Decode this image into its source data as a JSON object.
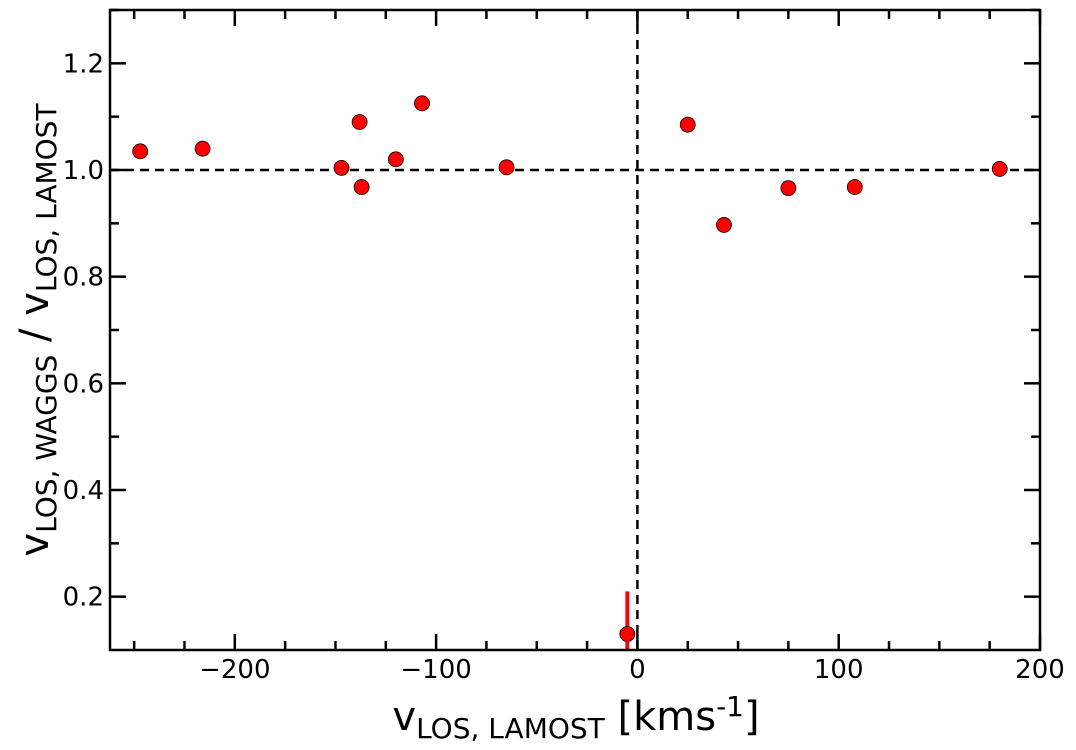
{
  "chart_data": {
    "type": "scatter",
    "xlabel": {
      "main": "v",
      "sub": "LOS, LAMOST",
      "tail": " [kms",
      "sup": "-1",
      "end": "]"
    },
    "ylabel": {
      "main1": "v",
      "sub1": "LOS, WAGGS",
      "mid": " / v",
      "sub2": "LOS, LAMOST"
    },
    "xlim": [
      -262,
      200
    ],
    "ylim": [
      0.1,
      1.3
    ],
    "x_ticks": [
      -200,
      -100,
      0,
      100,
      200
    ],
    "x_tick_labels": [
      "−200",
      "−100",
      "0",
      "100",
      "200"
    ],
    "y_ticks": [
      0.2,
      0.4,
      0.6,
      0.8,
      1.0,
      1.2
    ],
    "y_tick_labels": [
      "0.2",
      "0.4",
      "0.6",
      "0.8",
      "1.0",
      "1.2"
    ],
    "reference_lines": {
      "horizontal_y": 1.0,
      "vertical_x": 0
    },
    "marker_color": "#ff0000",
    "points": [
      {
        "x": -247,
        "y": 1.035
      },
      {
        "x": -216,
        "y": 1.04
      },
      {
        "x": -147,
        "y": 1.004
      },
      {
        "x": -138,
        "y": 1.09
      },
      {
        "x": -137,
        "y": 0.968
      },
      {
        "x": -120,
        "y": 1.02
      },
      {
        "x": -107,
        "y": 1.125
      },
      {
        "x": -65,
        "y": 1.005
      },
      {
        "x": -5,
        "y": 0.13,
        "err_high": 0.21,
        "err_low": 0.1
      },
      {
        "x": 25,
        "y": 1.085
      },
      {
        "x": 43,
        "y": 0.897
      },
      {
        "x": 75,
        "y": 0.966
      },
      {
        "x": 108,
        "y": 0.968
      },
      {
        "x": 180,
        "y": 1.002
      }
    ]
  }
}
